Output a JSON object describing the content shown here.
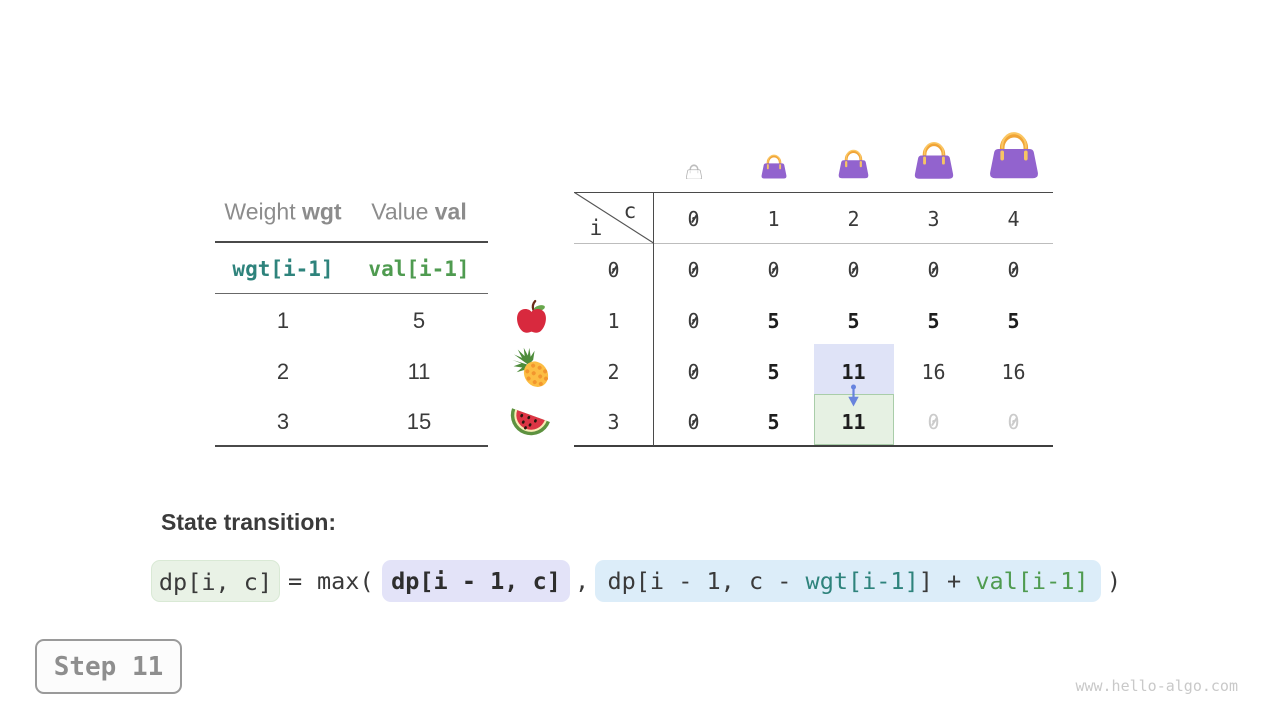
{
  "page": {
    "watermark": "www.hello-algo.com",
    "step_label": "Step 11"
  },
  "items_table": {
    "col1_header": {
      "label": "Weight",
      "code": "wgt"
    },
    "col2_header": {
      "label": "Value",
      "code": "val"
    },
    "code_row": {
      "weight": "wgt[i-1]",
      "value": "val[i-1]"
    },
    "rows": [
      {
        "weight": "1",
        "value": "5",
        "fruit": "apple"
      },
      {
        "weight": "2",
        "value": "11",
        "fruit": "pineapple"
      },
      {
        "weight": "3",
        "value": "15",
        "fruit": "watermelon"
      }
    ]
  },
  "dp_table": {
    "corner": {
      "col_var": "c",
      "row_var": "i"
    },
    "col_headers": [
      "0",
      "1",
      "2",
      "3",
      "4"
    ],
    "row_headers": [
      "0",
      "1",
      "2",
      "3"
    ],
    "bags": [
      {
        "capacity": 0,
        "size": 16,
        "empty": true
      },
      {
        "capacity": 1,
        "size": 26,
        "empty": false
      },
      {
        "capacity": 2,
        "size": 31,
        "empty": false
      },
      {
        "capacity": 3,
        "size": 40,
        "empty": false
      },
      {
        "capacity": 4,
        "size": 50,
        "empty": false
      }
    ],
    "cells": [
      [
        {
          "v": "0"
        },
        {
          "v": "0"
        },
        {
          "v": "0"
        },
        {
          "v": "0"
        },
        {
          "v": "0"
        }
      ],
      [
        {
          "v": "0"
        },
        {
          "v": "5",
          "b": 1
        },
        {
          "v": "5",
          "b": 1
        },
        {
          "v": "5",
          "b": 1
        },
        {
          "v": "5",
          "b": 1
        }
      ],
      [
        {
          "v": "0"
        },
        {
          "v": "5",
          "b": 1
        },
        {
          "v": "11",
          "b": 1,
          "hl": "blue"
        },
        {
          "v": "16"
        },
        {
          "v": "16"
        }
      ],
      [
        {
          "v": "0"
        },
        {
          "v": "5",
          "b": 1
        },
        {
          "v": "11",
          "b": 1,
          "hl": "green"
        },
        {
          "v": "0",
          "muted": 1
        },
        {
          "v": "0",
          "muted": 1
        }
      ]
    ],
    "arrow": {
      "from_cell": [
        2,
        2
      ],
      "to_cell": [
        3,
        2
      ]
    }
  },
  "transition": {
    "heading": "State transition:",
    "lhs": "dp[i, c]",
    "equals": "=",
    "max_open": "max(",
    "term1": "dp[i - 1, c]",
    "comma": ",",
    "term2_parts": [
      {
        "t": "dp[i - 1, c - ",
        "c": "dark"
      },
      {
        "t": "wgt[i-1]",
        "c": "teal"
      },
      {
        "t": "]",
        "c": "dark"
      },
      {
        "t": " + ",
        "c": "dark"
      },
      {
        "t": "val[i-1]",
        "c": "green"
      }
    ],
    "close_paren": ")"
  },
  "colors": {
    "text_dark": "#3a3a3a",
    "text_gray": "#8c8c8c",
    "text_muted": "#cbcbcb",
    "teal": "#2e837c",
    "green": "#4f9b50",
    "line_dark": "#4a4a4a",
    "line_light": "#bdbdbd",
    "box_green": "#e9f2e6",
    "box_lavender": "#e3e3f8",
    "box_blue": "#dcedf9",
    "cell_blue": "#dfe3f7",
    "cell_green": "#e6f1e3",
    "cell_green_border": "#a9cda9",
    "arrow_blue": "#5b79dd",
    "bag_purple": "#9263ce",
    "bag_handle": "#f0a437",
    "step_text": "#8e8e8e",
    "watermark": "#c9c9c9"
  }
}
